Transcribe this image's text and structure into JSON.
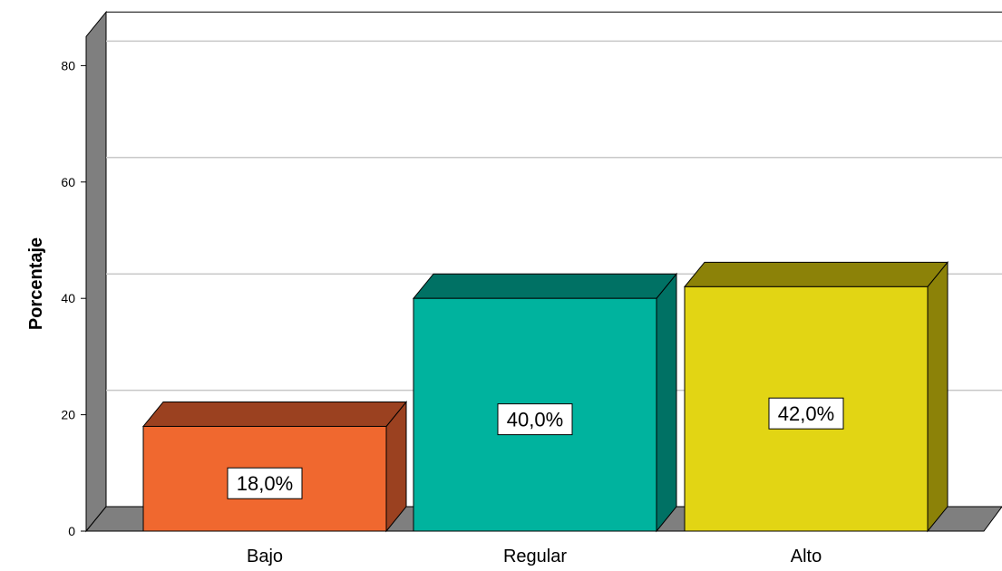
{
  "chart_data": {
    "type": "bar",
    "title": "",
    "xlabel": "",
    "ylabel": "Porcentaje",
    "ylim": [
      0,
      85
    ],
    "yticks": [
      0,
      20,
      40,
      60,
      80
    ],
    "grid": true,
    "style": "3d",
    "categories": [
      "Bajo",
      "Regular",
      "Alto"
    ],
    "values": [
      18.0,
      40.0,
      42.0
    ],
    "data_labels": [
      "18,0%",
      "40,0%",
      "42,0%"
    ],
    "colors": [
      {
        "front": "#f0682f",
        "top": "#9b4120",
        "side": "#9b4120"
      },
      {
        "front": "#00b39e",
        "top": "#007164",
        "side": "#007164"
      },
      {
        "front": "#e2d514",
        "top": "#8c8208",
        "side": "#8c8208"
      }
    ],
    "wall_color": "#7f7f7f",
    "grid_color": "#c8c8c8"
  }
}
